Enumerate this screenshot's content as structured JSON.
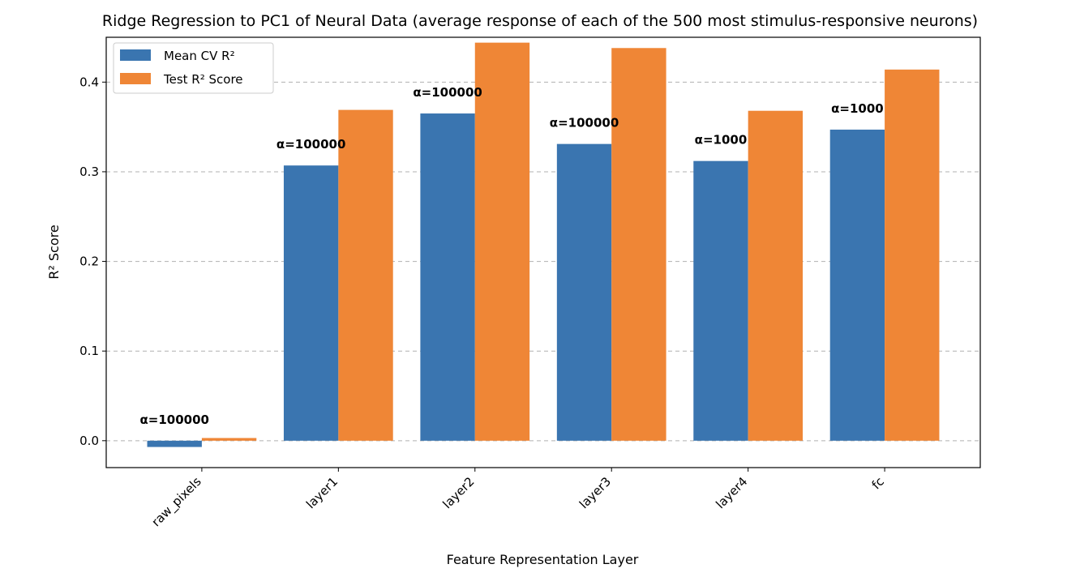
{
  "chart_data": {
    "type": "bar",
    "title": "Ridge Regression to PC1 of Neural Data (average response of each of the 500 most stimulus-responsive neurons)",
    "xlabel": "Feature Representation Layer",
    "ylabel": "R² Score",
    "categories": [
      "raw_pixels",
      "layer1",
      "layer2",
      "layer3",
      "layer4",
      "fc"
    ],
    "series": [
      {
        "name": "Mean CV R²",
        "color": "#3a75b0",
        "values": [
          -0.007,
          0.307,
          0.365,
          0.331,
          0.312,
          0.347
        ]
      },
      {
        "name": "Test R² Score",
        "color": "#ef8636",
        "values": [
          0.003,
          0.369,
          0.444,
          0.438,
          0.368,
          0.414
        ]
      }
    ],
    "annotations": [
      "α=100000",
      "α=100000",
      "α=100000",
      "α=100000",
      "α=1000",
      "α=1000"
    ],
    "ylim": [
      -0.03,
      0.45
    ],
    "yticks": [
      0.0,
      0.1,
      0.2,
      0.3,
      0.4
    ],
    "ytick_labels": [
      "0.0",
      "0.1",
      "0.2",
      "0.3",
      "0.4"
    ],
    "grid": "y-dashed",
    "legend_position": "top-left"
  }
}
